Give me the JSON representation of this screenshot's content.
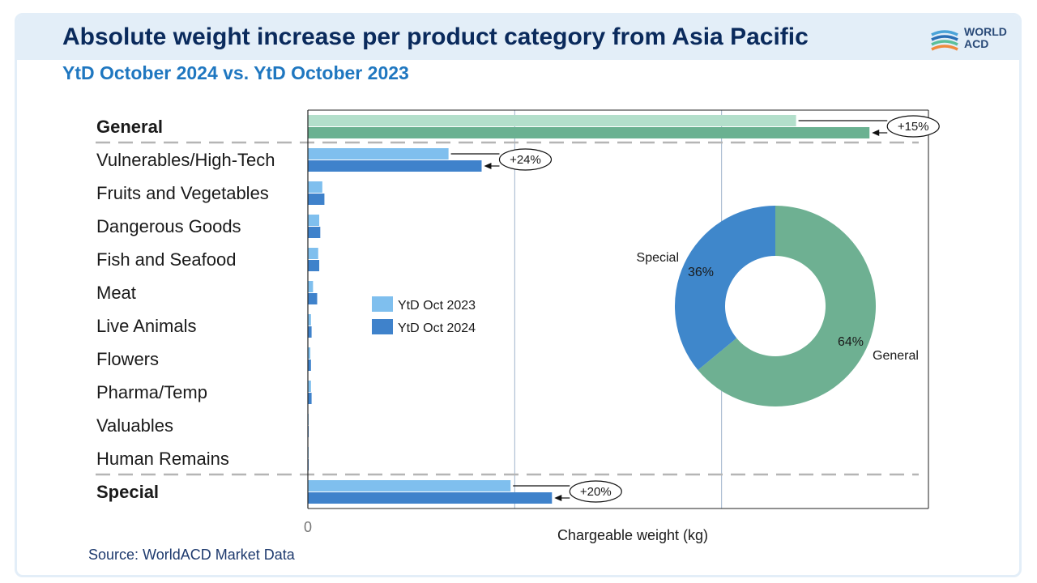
{
  "header": {
    "title": "Absolute weight increase per product category from Asia Pacific",
    "subtitle": "YtD October 2024 vs. YtD October 2023",
    "logo_text_line1": "WORLD",
    "logo_text_line2": "ACD"
  },
  "footer": {
    "source": "Source: WorldACD Market Data"
  },
  "colors": {
    "general_2023": "#b3dfcb",
    "general_2024": "#6ab191",
    "special_2023": "#7fbfee",
    "special_2024": "#3f82cb",
    "pie_general": "#6eb092",
    "pie_special": "#3f87cb",
    "title": "#0a2a5c",
    "subtitle": "#1f77c0"
  },
  "chart_data": [
    {
      "type": "bar",
      "orientation": "horizontal",
      "title": "Absolute weight increase per product category from Asia Pacific",
      "xlabel": "Chargeable weight (kg)",
      "x_tick_labels": [
        "0"
      ],
      "xlim": [
        0,
        300
      ],
      "grid": true,
      "legend_placement": "center",
      "categories": [
        "General",
        "Vulnerables/High-Tech",
        "Fruits and Vegetables",
        "Dangerous Goods",
        "Fish and Seafood",
        "Meat",
        "Live Animals",
        "Flowers",
        "Pharma/Temp",
        "Valuables",
        "Human Remains",
        "Special"
      ],
      "bold_categories": [
        "General",
        "Special"
      ],
      "series": [
        {
          "name": "YtD Oct 2023",
          "values": [
            236,
            68,
            7,
            5.5,
            5,
            2.5,
            1.5,
            1.2,
            1.5,
            0.3,
            0.3,
            98
          ]
        },
        {
          "name": "YtD Oct 2024",
          "values": [
            271.5,
            84,
            8,
            6,
            5.5,
            4.5,
            1.8,
            1.5,
            1.8,
            0.4,
            0.4,
            118
          ]
        }
      ],
      "annotations": [
        {
          "category": "General",
          "text": "+15%"
        },
        {
          "category": "Vulnerables/High-Tech",
          "text": "+24%"
        },
        {
          "category": "Special",
          "text": "+20%"
        }
      ]
    },
    {
      "type": "pie",
      "style": "donut",
      "labels": [
        "General",
        "Special"
      ],
      "values": [
        64,
        36
      ],
      "value_labels": [
        "64%",
        "36%"
      ]
    }
  ]
}
